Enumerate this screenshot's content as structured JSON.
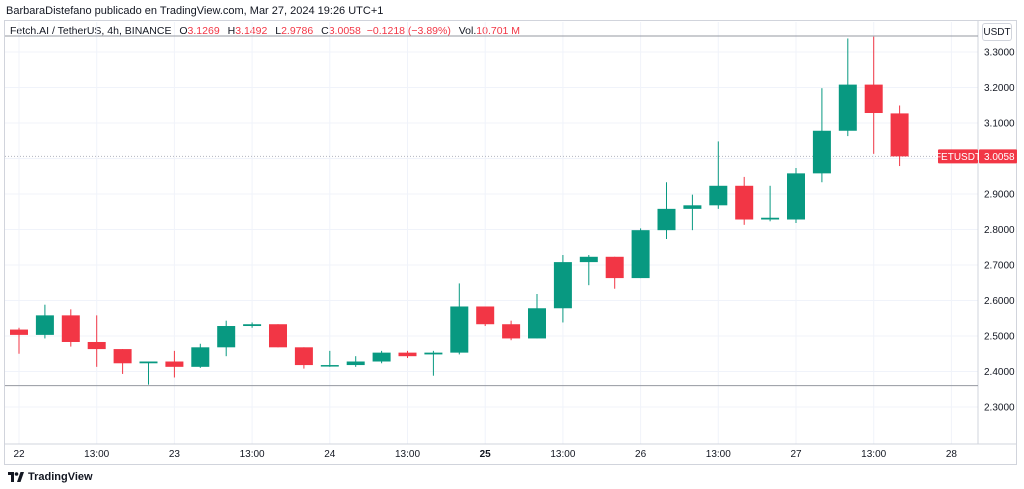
{
  "header": {
    "caption": "BarbaraDistefano publicado en TradingView.com, Mar 27, 2024 19:26 UTC+1",
    "symbol": "Fetch.AI / TetherUS, 4h, BINANCE",
    "ohlc": {
      "open_label": "O",
      "open": "3.1269",
      "high_label": "H",
      "high": "3.1492",
      "low_label": "L",
      "low": "2.9786",
      "close_label": "C",
      "close": "3.0058",
      "change": "−0.1218 (−3.89%)",
      "vol_label": "Vol.",
      "vol": "10.701 M"
    }
  },
  "toolbar": {
    "currency_button": "USDT"
  },
  "footer": {
    "brand": "TradingView"
  },
  "colors": {
    "up": "#089981",
    "down": "#f23645",
    "grid": "#f0f3fa"
  },
  "chart_data": {
    "type": "candlestick",
    "symbol": "FETUSDT",
    "interval": "4h",
    "ylim": [
      2.27,
      3.39
    ],
    "y_ticks": [
      "2.3000",
      "2.4000",
      "2.5000",
      "2.6000",
      "2.7000",
      "2.8000",
      "2.9000",
      "3.0000",
      "3.1000",
      "3.2000",
      "3.3000"
    ],
    "x_ticks": [
      {
        "label": "22",
        "index": 0,
        "bold": false
      },
      {
        "label": "13:00",
        "index": 3,
        "bold": false
      },
      {
        "label": "23",
        "index": 6,
        "bold": false
      },
      {
        "label": "13:00",
        "index": 9,
        "bold": false
      },
      {
        "label": "24",
        "index": 12,
        "bold": false
      },
      {
        "label": "13:00",
        "index": 15,
        "bold": false
      },
      {
        "label": "25",
        "index": 18,
        "bold": true
      },
      {
        "label": "13:00",
        "index": 21,
        "bold": false
      },
      {
        "label": "26",
        "index": 24,
        "bold": false
      },
      {
        "label": "13:00",
        "index": 27,
        "bold": false
      },
      {
        "label": "27",
        "index": 30,
        "bold": false
      },
      {
        "label": "13:00",
        "index": 33,
        "bold": false
      },
      {
        "label": "28",
        "index": 36,
        "bold": false
      }
    ],
    "horizontal_lines": [
      3.345,
      2.36
    ],
    "last_price_label": "FETUSDT",
    "last_price": "3.0058",
    "last_price_value": 3.0058,
    "candles": [
      {
        "o": 2.518,
        "h": 2.523,
        "l": 2.45,
        "c": 2.503
      },
      {
        "o": 2.503,
        "h": 2.588,
        "l": 2.493,
        "c": 2.558
      },
      {
        "o": 2.558,
        "h": 2.575,
        "l": 2.47,
        "c": 2.483
      },
      {
        "o": 2.483,
        "h": 2.558,
        "l": 2.413,
        "c": 2.463
      },
      {
        "o": 2.463,
        "h": 2.463,
        "l": 2.393,
        "c": 2.423
      },
      {
        "o": 2.423,
        "h": 2.428,
        "l": 2.363,
        "c": 2.428
      },
      {
        "o": 2.428,
        "h": 2.458,
        "l": 2.383,
        "c": 2.413
      },
      {
        "o": 2.413,
        "h": 2.478,
        "l": 2.41,
        "c": 2.468
      },
      {
        "o": 2.468,
        "h": 2.543,
        "l": 2.443,
        "c": 2.528
      },
      {
        "o": 2.528,
        "h": 2.538,
        "l": 2.523,
        "c": 2.533
      },
      {
        "o": 2.533,
        "h": 2.533,
        "l": 2.468,
        "c": 2.468
      },
      {
        "o": 2.468,
        "h": 2.468,
        "l": 2.408,
        "c": 2.418
      },
      {
        "o": 2.418,
        "h": 2.458,
        "l": 2.413,
        "c": 2.418
      },
      {
        "o": 2.418,
        "h": 2.443,
        "l": 2.413,
        "c": 2.428
      },
      {
        "o": 2.428,
        "h": 2.458,
        "l": 2.423,
        "c": 2.453
      },
      {
        "o": 2.453,
        "h": 2.458,
        "l": 2.438,
        "c": 2.443
      },
      {
        "o": 2.448,
        "h": 2.458,
        "l": 2.388,
        "c": 2.453
      },
      {
        "o": 2.453,
        "h": 2.648,
        "l": 2.448,
        "c": 2.583
      },
      {
        "o": 2.583,
        "h": 2.583,
        "l": 2.528,
        "c": 2.533
      },
      {
        "o": 2.533,
        "h": 2.543,
        "l": 2.488,
        "c": 2.493
      },
      {
        "o": 2.493,
        "h": 2.618,
        "l": 2.493,
        "c": 2.578
      },
      {
        "o": 2.578,
        "h": 2.728,
        "l": 2.538,
        "c": 2.708
      },
      {
        "o": 2.708,
        "h": 2.728,
        "l": 2.643,
        "c": 2.723
      },
      {
        "o": 2.723,
        "h": 2.723,
        "l": 2.633,
        "c": 2.663
      },
      {
        "o": 2.663,
        "h": 2.803,
        "l": 2.663,
        "c": 2.798
      },
      {
        "o": 2.798,
        "h": 2.933,
        "l": 2.773,
        "c": 2.858
      },
      {
        "o": 2.858,
        "h": 2.898,
        "l": 2.798,
        "c": 2.868
      },
      {
        "o": 2.868,
        "h": 3.048,
        "l": 2.858,
        "c": 2.923
      },
      {
        "o": 2.923,
        "h": 2.948,
        "l": 2.813,
        "c": 2.828
      },
      {
        "o": 2.828,
        "h": 2.923,
        "l": 2.823,
        "c": 2.833
      },
      {
        "o": 2.828,
        "h": 2.973,
        "l": 2.818,
        "c": 2.958
      },
      {
        "o": 2.958,
        "h": 3.198,
        "l": 2.933,
        "c": 3.078
      },
      {
        "o": 3.078,
        "h": 3.338,
        "l": 3.063,
        "c": 3.208
      },
      {
        "o": 3.208,
        "h": 3.343,
        "l": 3.013,
        "c": 3.128
      },
      {
        "o": 3.1269,
        "h": 3.1492,
        "l": 2.9786,
        "c": 3.0058
      }
    ]
  }
}
